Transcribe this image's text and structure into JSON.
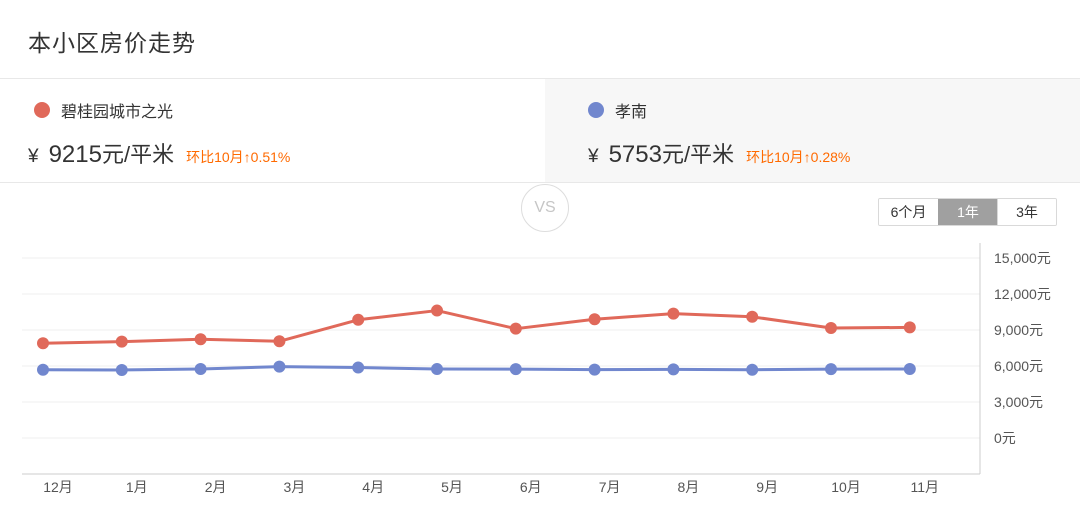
{
  "page": {
    "title": "本小区房价走势"
  },
  "compare": {
    "vs_label": "VS",
    "left": {
      "name": "碧桂园城市之光",
      "currency": "¥",
      "price": "9215",
      "unit": "元/平米",
      "mom": "环比10月↑0.51%",
      "color": "#e0695a"
    },
    "right": {
      "name": "孝南",
      "currency": "¥",
      "price": "5753",
      "unit": "元/平米",
      "mom": "环比10月↑0.28%",
      "color": "#7187ce"
    }
  },
  "range_buttons": [
    {
      "label": "6个月",
      "active": false
    },
    {
      "label": "1年",
      "active": true
    },
    {
      "label": "3年",
      "active": false
    }
  ],
  "colors": {
    "accent_orange": "#ff6a00",
    "grid_line": "#efefef",
    "axis_line": "#cccccc",
    "axis_label": "#555555",
    "active_button_bg": "#a0a0a0",
    "right_panel_bg": "#f7f7f7"
  },
  "chart_data": {
    "type": "line",
    "categories": [
      "12月",
      "1月",
      "2月",
      "3月",
      "4月",
      "5月",
      "6月",
      "7月",
      "8月",
      "9月",
      "10月",
      "11月"
    ],
    "series": [
      {
        "name": "碧桂园城市之光",
        "color": "#e0695a",
        "values": [
          7900,
          8030,
          8230,
          8060,
          9850,
          10620,
          9110,
          9900,
          10360,
          10100,
          9168,
          9215
        ]
      },
      {
        "name": "孝南",
        "color": "#7187ce",
        "values": [
          5690,
          5670,
          5750,
          5950,
          5870,
          5745,
          5740,
          5700,
          5715,
          5690,
          5737,
          5753
        ]
      }
    ],
    "ylim": [
      0,
      15000
    ],
    "yticks": [
      15000,
      12000,
      9000,
      6000,
      3000,
      0
    ],
    "ytick_labels": [
      "15,000元",
      "12,000元",
      "9,000元",
      "6,000元",
      "3,000元",
      "0元"
    ],
    "ylabel_side": "right",
    "grid": true,
    "legend_position": "header-cards"
  }
}
